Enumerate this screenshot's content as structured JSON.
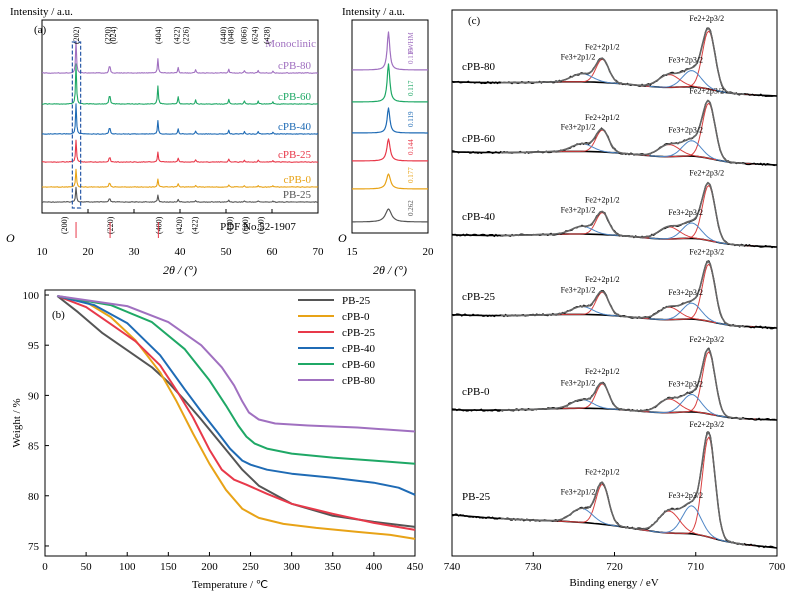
{
  "colors": {
    "PB-25": "#555555",
    "cPB-0": "#e8a317",
    "cPB-25": "#e8394a",
    "cPB-40": "#1f6bb5",
    "cPB-60": "#1fa866",
    "cPB-80": "#a070c0",
    "xps_fit": "#4f86c6",
    "xps_red": "#d94040"
  },
  "chart_data": [
    {
      "type": "line",
      "panel": "(a)",
      "ylabel": "Intensity / a.u.",
      "xlabel": "2θ / (°)",
      "xlim": [
        10,
        70
      ],
      "xticks": [
        "10",
        "20",
        "30",
        "40",
        "50",
        "60",
        "70"
      ],
      "origin_label": "O",
      "series_order": [
        "PB-25",
        "cPB-0",
        "cPB-25",
        "cPB-40",
        "cPB-60",
        "cPB-80"
      ],
      "peaks_2theta": [
        17.4,
        24.7,
        35.2,
        39.6,
        43.4,
        50.6,
        54.0,
        57.0,
        60.2
      ],
      "monoclinic_label": "Monoclinic",
      "monoclinic_hkl": [
        {
          "x": 17.4,
          "label": "(202)"
        },
        {
          "x": 24.2,
          "label": "(220)"
        },
        {
          "x": 25.4,
          "label": "(024)"
        },
        {
          "x": 35.2,
          "label": "(404)"
        },
        {
          "x": 39.2,
          "label": "(422)"
        },
        {
          "x": 41.2,
          "label": "(226)"
        },
        {
          "x": 49.3,
          "label": "(440)"
        },
        {
          "x": 51.0,
          "label": "(048)"
        },
        {
          "x": 53.8,
          "label": "(066)"
        },
        {
          "x": 56.2,
          "label": "(624)"
        },
        {
          "x": 58.8,
          "label": "(428)"
        }
      ],
      "pdf_label": "PDF No.52-1907",
      "pdf_hkl": [
        {
          "x": 14.8,
          "label": "(200)"
        },
        {
          "x": 24.8,
          "label": "(220)"
        },
        {
          "x": 35.3,
          "label": "(400)"
        },
        {
          "x": 39.8,
          "label": "(420)"
        },
        {
          "x": 43.2,
          "label": "(422)"
        },
        {
          "x": 50.8,
          "label": "(440)"
        },
        {
          "x": 54.1,
          "label": "(600)"
        },
        {
          "x": 57.5,
          "label": "(620)"
        }
      ],
      "pdf_sticks": [
        17.4,
        24.8,
        35.3
      ]
    },
    {
      "type": "line",
      "panel": "inset",
      "ylabel": "Intensity / a.u.",
      "xlabel": "2θ / (°)",
      "xlim": [
        15,
        20
      ],
      "xticks": [
        "15",
        "20"
      ],
      "origin_label": "O",
      "fwhm_label": "FWHM",
      "fwhm": [
        {
          "sample": "cPB-80",
          "value": "0.116"
        },
        {
          "sample": "cPB-60",
          "value": "0.117"
        },
        {
          "sample": "cPB-40",
          "value": "0.119"
        },
        {
          "sample": "cPB-25",
          "value": "0.144"
        },
        {
          "sample": "cPB-0",
          "value": "0.177"
        },
        {
          "sample": "PB-25",
          "value": "0.262"
        }
      ]
    },
    {
      "type": "line",
      "panel": "(b)",
      "xlabel": "Temperature / ℃",
      "ylabel": "Weight / %",
      "xlim": [
        0,
        450
      ],
      "ylim": [
        74,
        100.5
      ],
      "xticks": [
        0,
        50,
        100,
        150,
        200,
        250,
        300,
        350,
        400,
        450
      ],
      "yticks": [
        75,
        80,
        85,
        90,
        95,
        100
      ],
      "legend_position": "top-right",
      "series": [
        {
          "name": "PB-25",
          "x": [
            15,
            40,
            70,
            100,
            130,
            150,
            170,
            190,
            210,
            230,
            240,
            260,
            300,
            350,
            400,
            450
          ],
          "y": [
            99.9,
            98.3,
            96.2,
            94.5,
            92.8,
            91.3,
            89.5,
            87.6,
            85.6,
            83.6,
            82.6,
            81.0,
            79.2,
            78.0,
            77.4,
            76.9
          ]
        },
        {
          "name": "cPB-0",
          "x": [
            15,
            50,
            80,
            110,
            140,
            160,
            180,
            200,
            220,
            240,
            260,
            290,
            330,
            380,
            420,
            450
          ],
          "y": [
            99.9,
            99.3,
            97.8,
            95.5,
            92.3,
            89.4,
            86.2,
            83.2,
            80.6,
            78.7,
            77.8,
            77.2,
            76.8,
            76.4,
            76.1,
            75.7
          ]
        },
        {
          "name": "cPB-25",
          "x": [
            15,
            50,
            80,
            110,
            140,
            160,
            180,
            200,
            215,
            230,
            245,
            270,
            300,
            350,
            400,
            450
          ],
          "y": [
            99.9,
            98.8,
            97.1,
            95.4,
            93.0,
            90.5,
            87.8,
            84.6,
            82.6,
            81.6,
            81.1,
            80.2,
            79.2,
            78.2,
            77.3,
            76.6
          ]
        },
        {
          "name": "cPB-40",
          "x": [
            15,
            60,
            100,
            140,
            170,
            190,
            210,
            225,
            240,
            250,
            270,
            300,
            350,
            400,
            430,
            450
          ],
          "y": [
            99.9,
            99.0,
            97.2,
            94.0,
            90.6,
            88.4,
            86.3,
            84.7,
            83.5,
            83.1,
            82.6,
            82.2,
            81.8,
            81.3,
            80.8,
            80.1
          ]
        },
        {
          "name": "cPB-60",
          "x": [
            15,
            80,
            130,
            170,
            200,
            220,
            235,
            245,
            255,
            270,
            300,
            350,
            400,
            450
          ],
          "y": [
            99.9,
            99.0,
            97.3,
            94.6,
            91.5,
            89.0,
            87.0,
            85.9,
            85.2,
            84.7,
            84.2,
            83.8,
            83.5,
            83.2
          ]
        },
        {
          "name": "cPB-80",
          "x": [
            15,
            100,
            150,
            190,
            215,
            230,
            240,
            248,
            260,
            280,
            320,
            380,
            450
          ],
          "y": [
            99.9,
            98.9,
            97.3,
            95.0,
            92.8,
            91.0,
            89.4,
            88.3,
            87.6,
            87.2,
            87.0,
            86.8,
            86.4
          ]
        }
      ]
    },
    {
      "type": "line",
      "panel": "(c)",
      "xlabel": "Binding energy / eV",
      "xlim": [
        740,
        700
      ],
      "xticks": [
        740,
        730,
        720,
        710,
        700
      ],
      "samples": [
        "cPB-80",
        "cPB-60",
        "cPB-40",
        "cPB-25",
        "cPB-0",
        "PB-25"
      ],
      "peak_labels": {
        "fe3_12": "Fe3+2p1/2",
        "fe2_12": "Fe2+2p1/2",
        "fe3_32": "Fe3+2p3/2",
        "fe2_32": "Fe2+2p3/2"
      },
      "peak_positions_eV": {
        "fe3_12": 724.0,
        "fe2_12": 721.5,
        "fe3_32": 710.5,
        "fe2_32": 708.4,
        "satellite": 713.3
      }
    }
  ]
}
